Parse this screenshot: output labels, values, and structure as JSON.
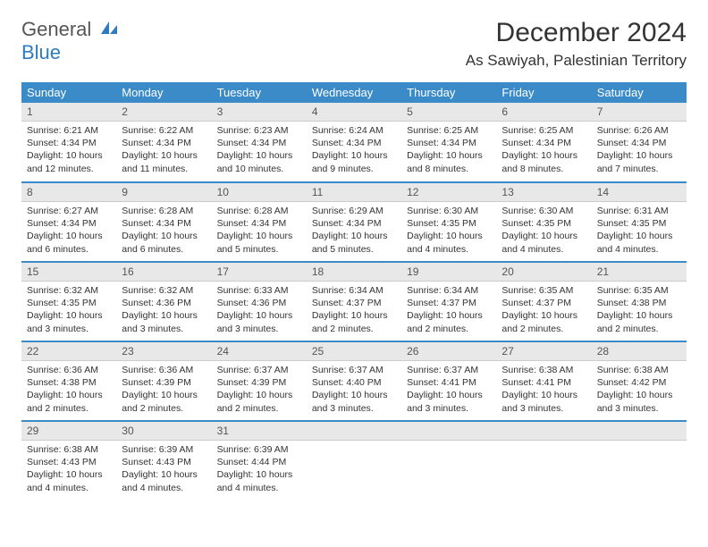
{
  "brand": {
    "part1": "General",
    "part2": "Blue"
  },
  "title": "December 2024",
  "location": "As Sawiyah, Palestinian Territory",
  "colors": {
    "header_bg": "#3b8bc9",
    "header_text": "#ffffff",
    "daynum_bg": "#e8e8e8",
    "row_sep": "#3b8bc9",
    "brand_blue": "#2f7bbf",
    "brand_gray": "#555555"
  },
  "weekdays": [
    "Sunday",
    "Monday",
    "Tuesday",
    "Wednesday",
    "Thursday",
    "Friday",
    "Saturday"
  ],
  "weeks": [
    [
      {
        "n": "1",
        "sr": "6:21 AM",
        "ss": "4:34 PM",
        "d": "10 hours and 12 minutes."
      },
      {
        "n": "2",
        "sr": "6:22 AM",
        "ss": "4:34 PM",
        "d": "10 hours and 11 minutes."
      },
      {
        "n": "3",
        "sr": "6:23 AM",
        "ss": "4:34 PM",
        "d": "10 hours and 10 minutes."
      },
      {
        "n": "4",
        "sr": "6:24 AM",
        "ss": "4:34 PM",
        "d": "10 hours and 9 minutes."
      },
      {
        "n": "5",
        "sr": "6:25 AM",
        "ss": "4:34 PM",
        "d": "10 hours and 8 minutes."
      },
      {
        "n": "6",
        "sr": "6:25 AM",
        "ss": "4:34 PM",
        "d": "10 hours and 8 minutes."
      },
      {
        "n": "7",
        "sr": "6:26 AM",
        "ss": "4:34 PM",
        "d": "10 hours and 7 minutes."
      }
    ],
    [
      {
        "n": "8",
        "sr": "6:27 AM",
        "ss": "4:34 PM",
        "d": "10 hours and 6 minutes."
      },
      {
        "n": "9",
        "sr": "6:28 AM",
        "ss": "4:34 PM",
        "d": "10 hours and 6 minutes."
      },
      {
        "n": "10",
        "sr": "6:28 AM",
        "ss": "4:34 PM",
        "d": "10 hours and 5 minutes."
      },
      {
        "n": "11",
        "sr": "6:29 AM",
        "ss": "4:34 PM",
        "d": "10 hours and 5 minutes."
      },
      {
        "n": "12",
        "sr": "6:30 AM",
        "ss": "4:35 PM",
        "d": "10 hours and 4 minutes."
      },
      {
        "n": "13",
        "sr": "6:30 AM",
        "ss": "4:35 PM",
        "d": "10 hours and 4 minutes."
      },
      {
        "n": "14",
        "sr": "6:31 AM",
        "ss": "4:35 PM",
        "d": "10 hours and 4 minutes."
      }
    ],
    [
      {
        "n": "15",
        "sr": "6:32 AM",
        "ss": "4:35 PM",
        "d": "10 hours and 3 minutes."
      },
      {
        "n": "16",
        "sr": "6:32 AM",
        "ss": "4:36 PM",
        "d": "10 hours and 3 minutes."
      },
      {
        "n": "17",
        "sr": "6:33 AM",
        "ss": "4:36 PM",
        "d": "10 hours and 3 minutes."
      },
      {
        "n": "18",
        "sr": "6:34 AM",
        "ss": "4:37 PM",
        "d": "10 hours and 2 minutes."
      },
      {
        "n": "19",
        "sr": "6:34 AM",
        "ss": "4:37 PM",
        "d": "10 hours and 2 minutes."
      },
      {
        "n": "20",
        "sr": "6:35 AM",
        "ss": "4:37 PM",
        "d": "10 hours and 2 minutes."
      },
      {
        "n": "21",
        "sr": "6:35 AM",
        "ss": "4:38 PM",
        "d": "10 hours and 2 minutes."
      }
    ],
    [
      {
        "n": "22",
        "sr": "6:36 AM",
        "ss": "4:38 PM",
        "d": "10 hours and 2 minutes."
      },
      {
        "n": "23",
        "sr": "6:36 AM",
        "ss": "4:39 PM",
        "d": "10 hours and 2 minutes."
      },
      {
        "n": "24",
        "sr": "6:37 AM",
        "ss": "4:39 PM",
        "d": "10 hours and 2 minutes."
      },
      {
        "n": "25",
        "sr": "6:37 AM",
        "ss": "4:40 PM",
        "d": "10 hours and 3 minutes."
      },
      {
        "n": "26",
        "sr": "6:37 AM",
        "ss": "4:41 PM",
        "d": "10 hours and 3 minutes."
      },
      {
        "n": "27",
        "sr": "6:38 AM",
        "ss": "4:41 PM",
        "d": "10 hours and 3 minutes."
      },
      {
        "n": "28",
        "sr": "6:38 AM",
        "ss": "4:42 PM",
        "d": "10 hours and 3 minutes."
      }
    ],
    [
      {
        "n": "29",
        "sr": "6:38 AM",
        "ss": "4:43 PM",
        "d": "10 hours and 4 minutes."
      },
      {
        "n": "30",
        "sr": "6:39 AM",
        "ss": "4:43 PM",
        "d": "10 hours and 4 minutes."
      },
      {
        "n": "31",
        "sr": "6:39 AM",
        "ss": "4:44 PM",
        "d": "10 hours and 4 minutes."
      },
      null,
      null,
      null,
      null
    ]
  ],
  "labels": {
    "sunrise": "Sunrise: ",
    "sunset": "Sunset: ",
    "daylight": "Daylight: "
  }
}
